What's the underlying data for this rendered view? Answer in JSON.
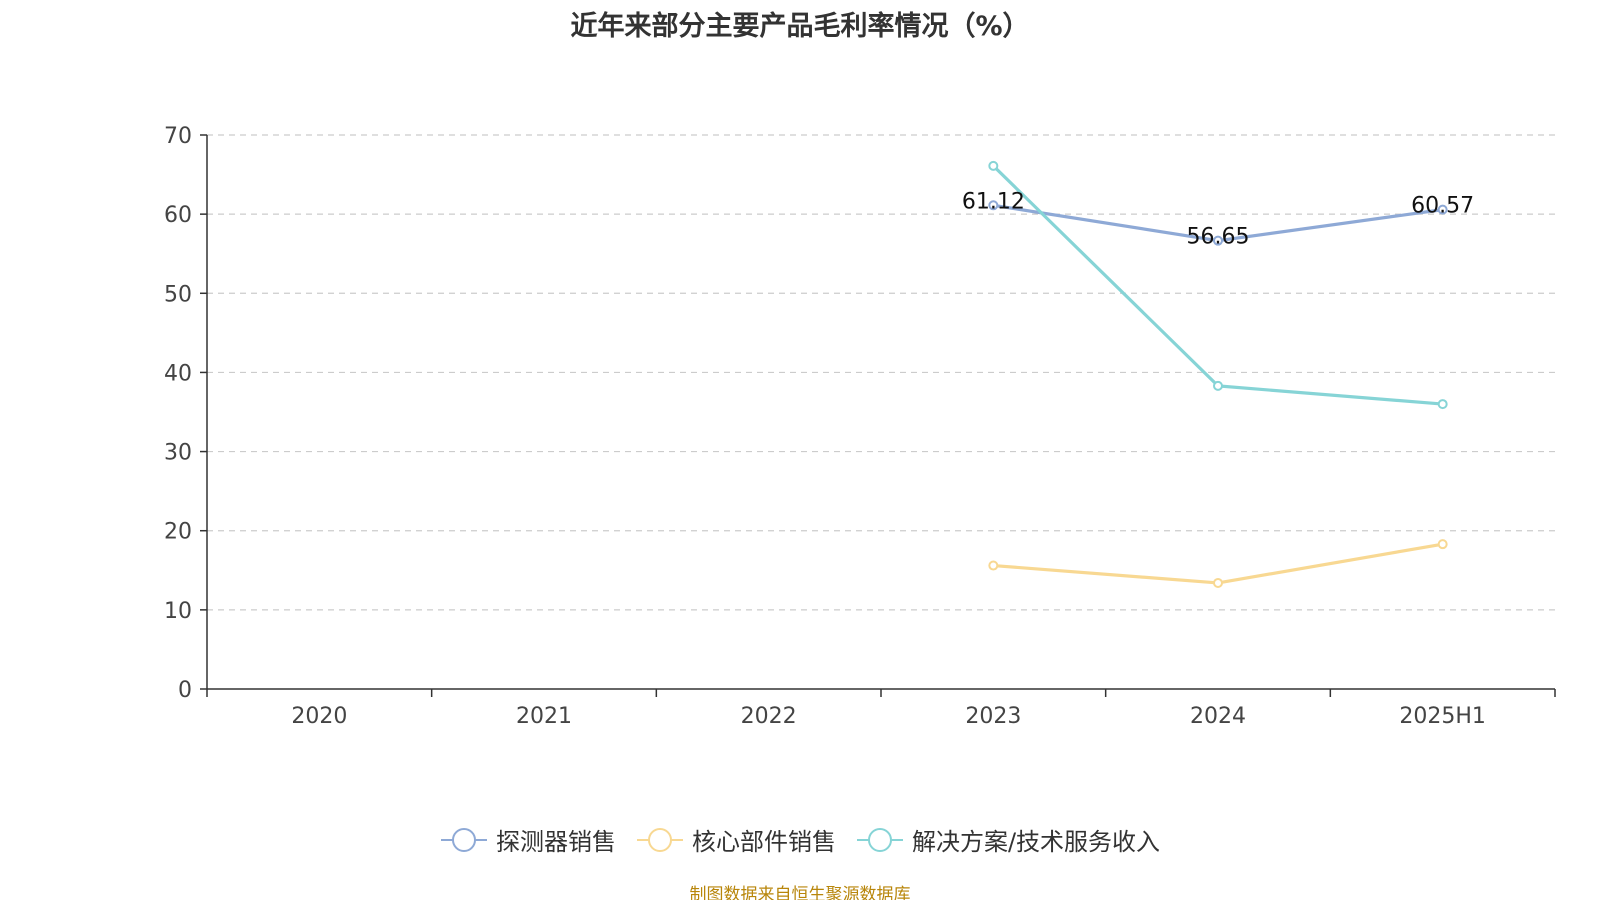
{
  "chart_data": {
    "type": "line",
    "title": "近年来部分主要产品毛利率情况（%）",
    "categories": [
      "2020",
      "2021",
      "2022",
      "2023",
      "2024",
      "2025H1"
    ],
    "ylim": [
      0,
      70
    ],
    "yticks": [
      0,
      10,
      20,
      30,
      40,
      50,
      60,
      70
    ],
    "grid": "horizontal-dashed",
    "legend_position": "bottom",
    "series": [
      {
        "name": "探测器销售",
        "color": "#8ea9d6",
        "values": [
          null,
          null,
          null,
          61.12,
          56.65,
          60.57
        ],
        "labels": [
          "",
          "",
          "",
          "61.12",
          "56.65",
          "60.57"
        ]
      },
      {
        "name": "核心部件销售",
        "color": "#f8d892",
        "values": [
          null,
          null,
          null,
          15.6,
          13.4,
          18.3
        ],
        "labels": [
          "",
          "",
          "",
          "",
          "",
          ""
        ]
      },
      {
        "name": "解决方案/技术服务收入",
        "color": "#86d4d6",
        "values": [
          null,
          null,
          null,
          66.1,
          38.3,
          36.0
        ],
        "labels": [
          "",
          "",
          "",
          "",
          "",
          ""
        ]
      }
    ]
  },
  "source": "制图数据来自恒生聚源数据库"
}
